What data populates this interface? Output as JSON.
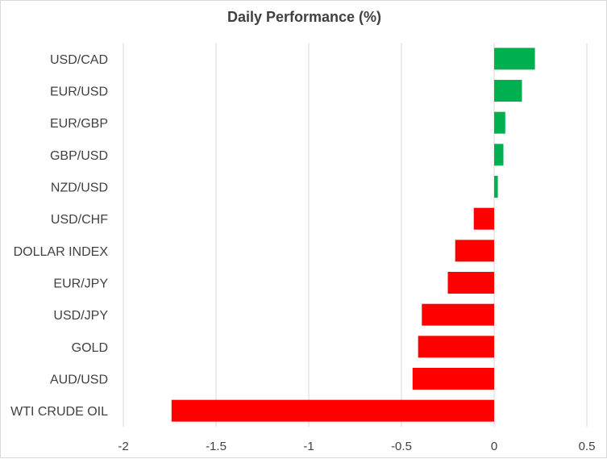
{
  "chart_data": {
    "type": "bar",
    "orientation": "horizontal",
    "title": "Daily Performance (%)",
    "categories": [
      "USD/CAD",
      "EUR/USD",
      "EUR/GBP",
      "GBP/USD",
      "NZD/USD",
      "USD/CHF",
      "DOLLAR INDEX",
      "EUR/JPY",
      "USD/JPY",
      "GOLD",
      "AUD/USD",
      "WTI CRUDE OIL"
    ],
    "values": [
      0.22,
      0.15,
      0.06,
      0.05,
      0.02,
      -0.11,
      -0.21,
      -0.25,
      -0.39,
      -0.41,
      -0.44,
      -1.74
    ],
    "xlim": [
      -2,
      0.5
    ],
    "xticks": [
      -2,
      -1.5,
      -1,
      -0.5,
      0,
      0.5
    ],
    "xtick_labels": [
      "-2",
      "-1.5",
      "-1",
      "-0.5",
      "0",
      "0.5"
    ],
    "grid": "vertical",
    "colors": {
      "positive": "#00b050",
      "negative": "#ff0000",
      "grid": "#d9d9d9",
      "text": "#404040"
    }
  }
}
